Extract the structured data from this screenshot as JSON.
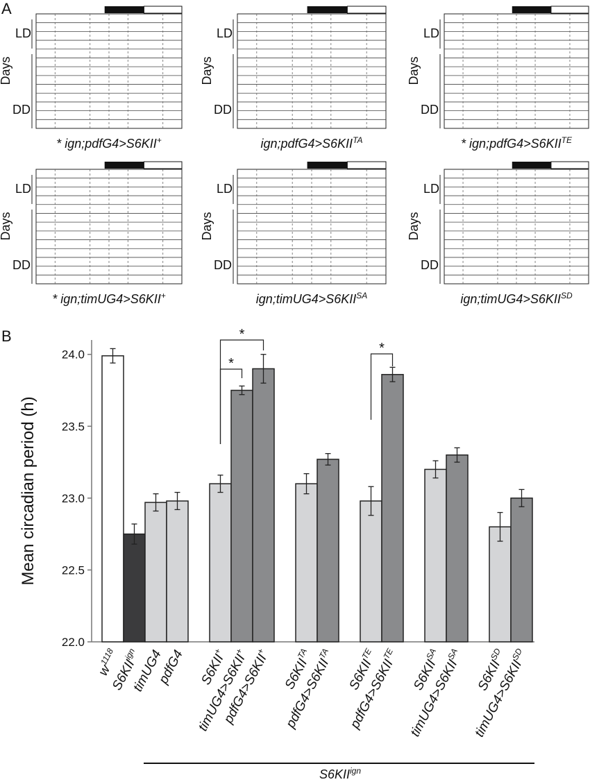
{
  "panel_a": {
    "label": "A",
    "row_labels": {
      "ld": "LD",
      "days": "Days",
      "dd": "DD"
    },
    "actograms": [
      {
        "star": "*",
        "title": "ign;pdfG4>S6KII",
        "sup": "+"
      },
      {
        "title": "ign;pdfG4>S6KII",
        "sup": "TA"
      },
      {
        "star": "*",
        "title": "ign;pdfG4>S6KII",
        "sup": "TE"
      },
      {
        "star": "*",
        "title": "ign;timUG4>S6KII",
        "sup": "+"
      },
      {
        "title": "ign;timUG4>S6KII",
        "sup": "SA"
      },
      {
        "title": "ign;timUG4>S6KII",
        "sup": "SD"
      }
    ]
  },
  "chart_data": {
    "type": "bar",
    "panel_label": "B",
    "y_label": "Mean circadian period (h)",
    "categories": [
      {
        "text": "w",
        "sup": "1118"
      },
      {
        "text": "S6KII",
        "sup": "ign"
      },
      {
        "text": "timUG4"
      },
      {
        "text": "pdfG4"
      },
      {
        "text": "S6KII",
        "sup": "+"
      },
      {
        "text": "timUG4>S6KII",
        "sup": "+"
      },
      {
        "text": "pdfG4>S6KII",
        "sup": "+"
      },
      {
        "text": "S6KII",
        "sup": "TA"
      },
      {
        "text": "pdfG4>S6KII",
        "sup": "TA"
      },
      {
        "text": "S6KII",
        "sup": "TE"
      },
      {
        "text": "pdfG4>S6KII",
        "sup": "TE"
      },
      {
        "text": "S6KII",
        "sup": "SA"
      },
      {
        "text": "timUG4>S6KII",
        "sup": "SA"
      },
      {
        "text": "S6KII",
        "sup": "SD"
      },
      {
        "text": "timUG4>S6KII",
        "sup": "SD"
      }
    ],
    "values": [
      23.99,
      22.75,
      22.97,
      22.98,
      23.1,
      23.75,
      23.9,
      23.1,
      23.27,
      22.98,
      23.86,
      23.2,
      23.3,
      22.8,
      23.0
    ],
    "errors": [
      0.05,
      0.07,
      0.06,
      0.06,
      0.06,
      0.03,
      0.1,
      0.07,
      0.04,
      0.1,
      0.05,
      0.06,
      0.05,
      0.1,
      0.06
    ],
    "colors": [
      "#ffffff",
      "#3b3b3d",
      "#d4d5d7",
      "#d4d5d7",
      "#d4d5d7",
      "#8a8b8d",
      "#8a8b8d",
      "#d4d5d7",
      "#8a8b8d",
      "#d4d5d7",
      "#8a8b8d",
      "#d4d5d7",
      "#8a8b8d",
      "#d4d5d7",
      "#8a8b8d"
    ],
    "ylim": [
      22,
      24.1
    ],
    "yticks": [
      {
        "value": 22,
        "label": "22.0"
      },
      22.5,
      {
        "value": 23,
        "label": "23.0"
      },
      23.5,
      {
        "value": 24,
        "label": "24.0"
      }
    ],
    "annotations": [
      "*",
      "*",
      "*"
    ],
    "group_label": {
      "text": "S6KII",
      "sup": "ign"
    }
  }
}
